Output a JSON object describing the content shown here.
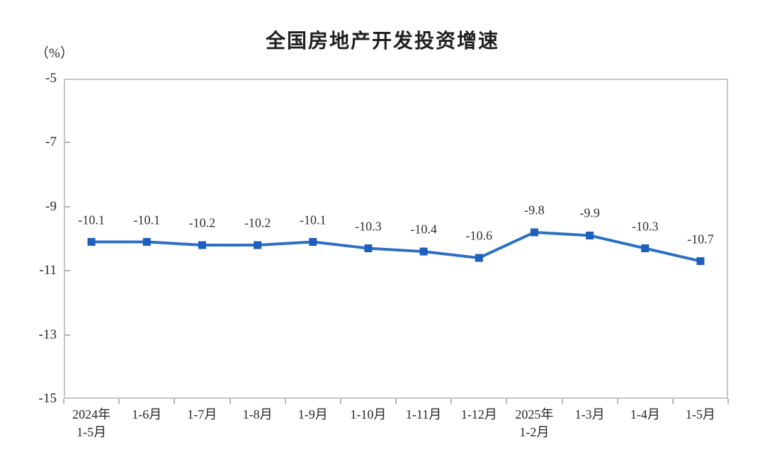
{
  "page": {
    "title": "全国房地产开发投资增速",
    "unit_label": "（%）"
  },
  "chart_data": {
    "type": "line",
    "title": "全国房地产开发投资增速",
    "ylabel": "（%）",
    "categories": [
      "2024年\n1-5月",
      "1-6月",
      "1-7月",
      "1-8月",
      "1-9月",
      "1-10月",
      "1-11月",
      "1-12月",
      "2025年\n1-2月",
      "1-3月",
      "1-4月",
      "1-5月"
    ],
    "values": [
      -10.1,
      -10.1,
      -10.2,
      -10.2,
      -10.1,
      -10.3,
      -10.4,
      -10.6,
      -9.8,
      -9.9,
      -10.3,
      -10.7
    ],
    "data_labels": [
      "-10.1",
      "-10.1",
      "-10.2",
      "-10.2",
      "-10.1",
      "-10.3",
      "-10.4",
      "-10.6",
      "-9.8",
      "-9.9",
      "-10.3",
      "-10.7"
    ],
    "ylim": [
      -15,
      -5
    ],
    "yticks": [
      "-5",
      "-7",
      "-9",
      "-11",
      "-13",
      "-15"
    ],
    "ytick_values": [
      -5,
      -7,
      -9,
      -11,
      -13,
      -15
    ],
    "grid": false,
    "legend_position": "none",
    "line_color": "#2b70c2",
    "marker_color": "#1d5ebe",
    "marker_shape": "square",
    "axis_color": "#c6c6c6",
    "label_color": "#2e2e2e"
  }
}
